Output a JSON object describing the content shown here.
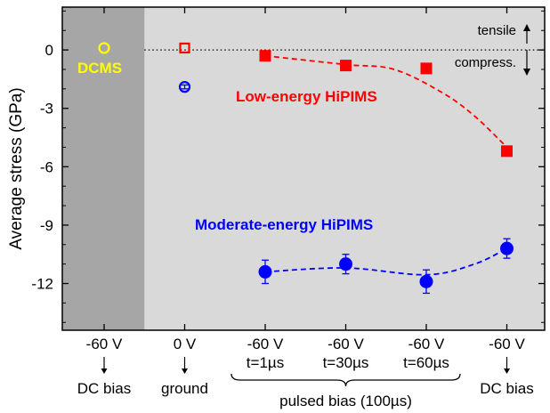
{
  "chart_data": {
    "type": "scatter",
    "ylabel": "Average stress (GPa)",
    "ylim": [
      -14.4,
      2.2
    ],
    "yticks": [
      0,
      -3,
      -6,
      -9,
      -12
    ],
    "ytick_labels": [
      "0",
      "-3",
      "-6",
      "-9",
      "-12"
    ],
    "categories": [
      {
        "line1": "-60 V",
        "line2": ""
      },
      {
        "line1": "0 V",
        "line2": ""
      },
      {
        "line1": "-60 V",
        "line2": "t=1µs"
      },
      {
        "line1": "-60 V",
        "line2": "t=30µs"
      },
      {
        "line1": "-60 V",
        "line2": "t=60µs"
      },
      {
        "line1": "-60 V",
        "line2": ""
      }
    ],
    "group_labels": {
      "dc_bias_left": "DC bias",
      "ground": "ground",
      "pulsed": "pulsed bias (100µs)",
      "dc_bias_right": "DC bias"
    },
    "reference_labels": {
      "tensile": "tensile",
      "compress": "compress."
    },
    "shaded_region": {
      "from_category": 0,
      "color": "#a6a6a6"
    },
    "plot_background": "#d9d9d9",
    "series": [
      {
        "name": "DCMS",
        "color": "#ffff00",
        "marker": "open-circle",
        "points": [
          {
            "x": 0,
            "y": 0.1
          }
        ]
      },
      {
        "name": "Low-energy HiPIMS",
        "color": "#ff0000",
        "marker": "square",
        "points": [
          {
            "x": 1,
            "y": 0.1,
            "open": true
          },
          {
            "x": 2,
            "y": -0.3
          },
          {
            "x": 3,
            "y": -0.8
          },
          {
            "x": 4,
            "y": -0.95
          },
          {
            "x": 5,
            "y": -5.2
          }
        ],
        "trend": [
          {
            "x": 2,
            "y": -0.3
          },
          {
            "x": 3,
            "y": -0.75
          },
          {
            "x": 3.6,
            "y": -1.0
          },
          {
            "x": 4.2,
            "y": -2.2
          },
          {
            "x": 4.6,
            "y": -3.4
          },
          {
            "x": 5,
            "y": -5.0
          }
        ]
      },
      {
        "name": "Moderate-energy HiPIMS",
        "color": "#0000ff",
        "marker": "circle",
        "points": [
          {
            "x": 1,
            "y": -1.9,
            "err": 0.1,
            "open": true
          },
          {
            "x": 2,
            "y": -11.4,
            "err": 0.6
          },
          {
            "x": 3,
            "y": -11.0,
            "err": 0.5
          },
          {
            "x": 4,
            "y": -11.9,
            "err": 0.6
          },
          {
            "x": 5,
            "y": -10.2,
            "err": 0.5
          }
        ],
        "trend": [
          {
            "x": 2,
            "y": -11.4
          },
          {
            "x": 3,
            "y": -11.2
          },
          {
            "x": 4,
            "y": -11.55
          },
          {
            "x": 4.6,
            "y": -11.0
          },
          {
            "x": 5,
            "y": -10.2
          }
        ]
      }
    ]
  }
}
